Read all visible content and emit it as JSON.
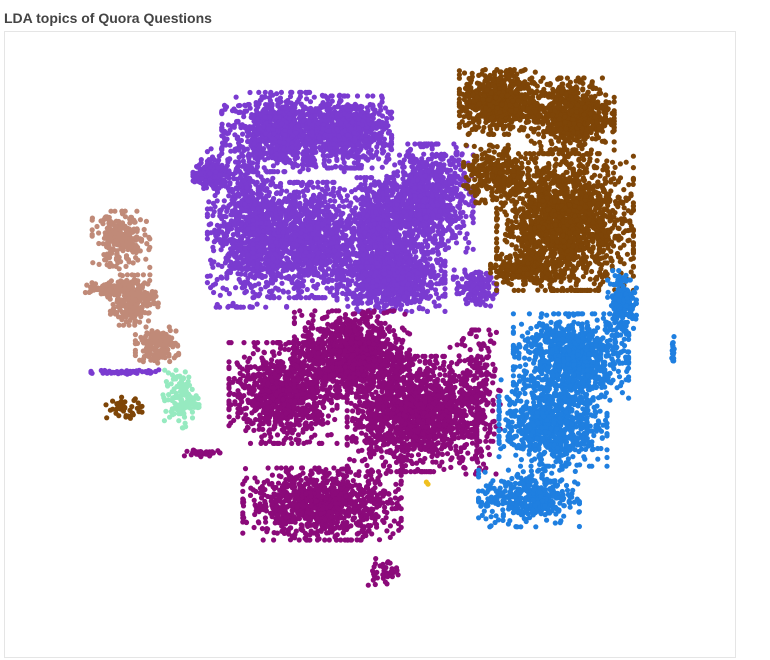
{
  "chart_data": {
    "type": "scatter",
    "title": "LDA topics of Quora Questions",
    "xlabel": "",
    "ylabel": "",
    "axes_visible": false,
    "grid": false,
    "legend": "none",
    "series": [
      {
        "color": "#7a3bd0",
        "clusters": [
          {
            "x": -0.28,
            "y": 0.72,
            "rx": 0.17,
            "ry": 0.11,
            "n": 900
          },
          {
            "x": -0.05,
            "y": 0.72,
            "rx": 0.11,
            "ry": 0.1,
            "n": 600
          },
          {
            "x": -0.4,
            "y": 0.4,
            "rx": 0.11,
            "ry": 0.22,
            "n": 800
          },
          {
            "x": -0.2,
            "y": 0.36,
            "rx": 0.15,
            "ry": 0.16,
            "n": 1200
          },
          {
            "x": 0.04,
            "y": 0.4,
            "rx": 0.09,
            "ry": 0.14,
            "n": 700
          },
          {
            "x": 0.21,
            "y": 0.5,
            "rx": 0.12,
            "ry": 0.15,
            "n": 900
          },
          {
            "x": 0.08,
            "y": 0.23,
            "rx": 0.15,
            "ry": 0.09,
            "n": 900
          },
          {
            "x": 0.36,
            "y": 0.2,
            "rx": 0.06,
            "ry": 0.05,
            "n": 150
          },
          {
            "x": -0.52,
            "y": 0.58,
            "rx": 0.05,
            "ry": 0.04,
            "n": 150
          },
          {
            "x": -0.8,
            "y": -0.08,
            "rx": 0.1,
            "ry": 0.006,
            "n": 60
          }
        ]
      },
      {
        "color": "#7e4507",
        "clusters": [
          {
            "x": 0.44,
            "y": 0.82,
            "rx": 0.11,
            "ry": 0.09,
            "n": 700
          },
          {
            "x": 0.68,
            "y": 0.78,
            "rx": 0.12,
            "ry": 0.1,
            "n": 700
          },
          {
            "x": 0.43,
            "y": 0.58,
            "rx": 0.09,
            "ry": 0.08,
            "n": 300
          },
          {
            "x": 0.66,
            "y": 0.42,
            "rx": 0.19,
            "ry": 0.19,
            "n": 1700
          },
          {
            "x": 0.52,
            "y": 0.26,
            "rx": 0.09,
            "ry": 0.04,
            "n": 200
          },
          {
            "x": -0.81,
            "y": -0.2,
            "rx": 0.05,
            "ry": 0.03,
            "n": 40
          }
        ]
      },
      {
        "color": "#808080",
        "clusters": []
      },
      {
        "color": "#c08a78",
        "clusters": [
          {
            "x": -0.82,
            "y": 0.36,
            "rx": 0.08,
            "ry": 0.08,
            "n": 250
          },
          {
            "x": -0.78,
            "y": 0.16,
            "rx": 0.07,
            "ry": 0.07,
            "n": 250
          },
          {
            "x": -0.7,
            "y": 0.01,
            "rx": 0.06,
            "ry": 0.05,
            "n": 150
          },
          {
            "x": -0.88,
            "y": 0.2,
            "rx": 0.06,
            "ry": 0.02,
            "n": 80
          }
        ]
      },
      {
        "color": "#8b0a7a",
        "clusters": [
          {
            "x": -0.28,
            "y": -0.15,
            "rx": 0.15,
            "ry": 0.14,
            "n": 900
          },
          {
            "x": -0.05,
            "y": -0.02,
            "rx": 0.16,
            "ry": 0.12,
            "n": 1000
          },
          {
            "x": 0.15,
            "y": -0.22,
            "rx": 0.18,
            "ry": 0.16,
            "n": 1400
          },
          {
            "x": -0.15,
            "y": -0.52,
            "rx": 0.22,
            "ry": 0.1,
            "n": 1000
          },
          {
            "x": 0.36,
            "y": -0.18,
            "rx": 0.07,
            "ry": 0.2,
            "n": 300
          },
          {
            "x": -0.55,
            "y": -0.35,
            "rx": 0.05,
            "ry": 0.01,
            "n": 40
          },
          {
            "x": 0.05,
            "y": -0.75,
            "rx": 0.05,
            "ry": 0.04,
            "n": 40
          }
        ]
      },
      {
        "color": "#1f7fe0",
        "clusters": [
          {
            "x": 0.68,
            "y": -0.03,
            "rx": 0.16,
            "ry": 0.12,
            "n": 900
          },
          {
            "x": 0.62,
            "y": -0.25,
            "rx": 0.15,
            "ry": 0.12,
            "n": 800
          },
          {
            "x": 0.54,
            "y": -0.5,
            "rx": 0.14,
            "ry": 0.08,
            "n": 400
          },
          {
            "x": 0.85,
            "y": 0.15,
            "rx": 0.04,
            "ry": 0.09,
            "n": 200
          },
          {
            "x": 1.02,
            "y": -0.01,
            "rx": 0.004,
            "ry": 0.04,
            "n": 20
          }
        ]
      },
      {
        "color": "#f0c020",
        "clusters": [
          {
            "x": 0.2,
            "y": -0.45,
            "rx": 0.005,
            "ry": 0.005,
            "n": 2
          }
        ]
      },
      {
        "color": "#96eac0",
        "clusters": [
          {
            "x": -0.62,
            "y": -0.17,
            "rx": 0.05,
            "ry": 0.08,
            "n": 120
          }
        ]
      }
    ]
  }
}
